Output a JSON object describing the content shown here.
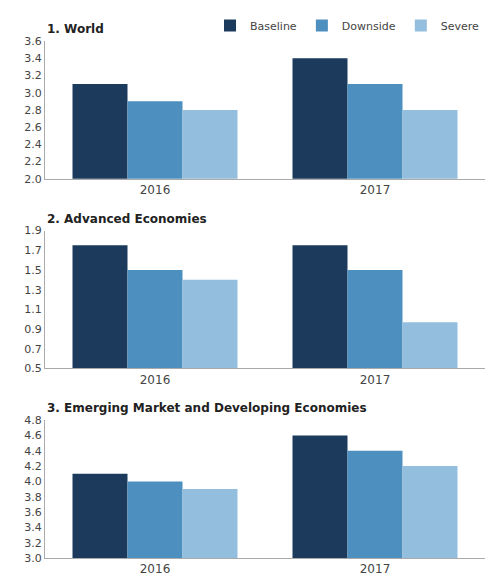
{
  "chart_data": [
    {
      "type": "bar",
      "title": "1. World",
      "categories": [
        "2016",
        "2017"
      ],
      "series": [
        {
          "name": "Baseline",
          "color": "#1b3a5c",
          "values": [
            3.1,
            3.4
          ]
        },
        {
          "name": "Downside",
          "color": "#4d8fbf",
          "values": [
            2.9,
            3.1
          ]
        },
        {
          "name": "Severe",
          "color": "#93bedd",
          "values": [
            2.8,
            2.8
          ]
        }
      ],
      "ylim": [
        2.0,
        3.6
      ],
      "yticks": [
        {
          "value": 2.0,
          "label": "2.0"
        },
        2.2,
        2.4,
        2.6,
        2.8,
        {
          "value": 3.0,
          "label": "3.0"
        },
        3.2,
        3.4,
        3.6
      ],
      "grid": false,
      "legend": "upper right"
    },
    {
      "type": "bar",
      "title": "2. Advanced Economies",
      "categories": [
        "2016",
        "2017"
      ],
      "series": [
        {
          "name": "Baseline",
          "color": "#1b3a5c",
          "values": [
            1.75,
            1.75
          ]
        },
        {
          "name": "Downside",
          "color": "#4d8fbf",
          "values": [
            1.5,
            1.5
          ]
        },
        {
          "name": "Severe",
          "color": "#93bedd",
          "values": [
            1.4,
            0.97
          ]
        }
      ],
      "ylim": [
        0.5,
        1.9
      ],
      "yticks": [
        0.5,
        0.7,
        0.9,
        1.1,
        1.3,
        1.5,
        1.7,
        1.9
      ],
      "grid": false
    },
    {
      "type": "bar",
      "title": "3. Emerging Market and Developing Economies",
      "categories": [
        "2016",
        "2017"
      ],
      "series": [
        {
          "name": "Baseline",
          "color": "#1b3a5c",
          "values": [
            4.1,
            4.6
          ]
        },
        {
          "name": "Downside",
          "color": "#4d8fbf",
          "values": [
            4.0,
            4.4
          ]
        },
        {
          "name": "Severe",
          "color": "#93bedd",
          "values": [
            3.9,
            4.2
          ]
        }
      ],
      "ylim": [
        3.0,
        4.8
      ],
      "yticks": [
        {
          "value": 3.0,
          "label": "3.0"
        },
        3.2,
        3.4,
        3.6,
        3.8,
        {
          "value": 4.0,
          "label": "4.0"
        },
        4.2,
        4.4,
        4.6,
        4.8
      ],
      "grid": false
    }
  ]
}
